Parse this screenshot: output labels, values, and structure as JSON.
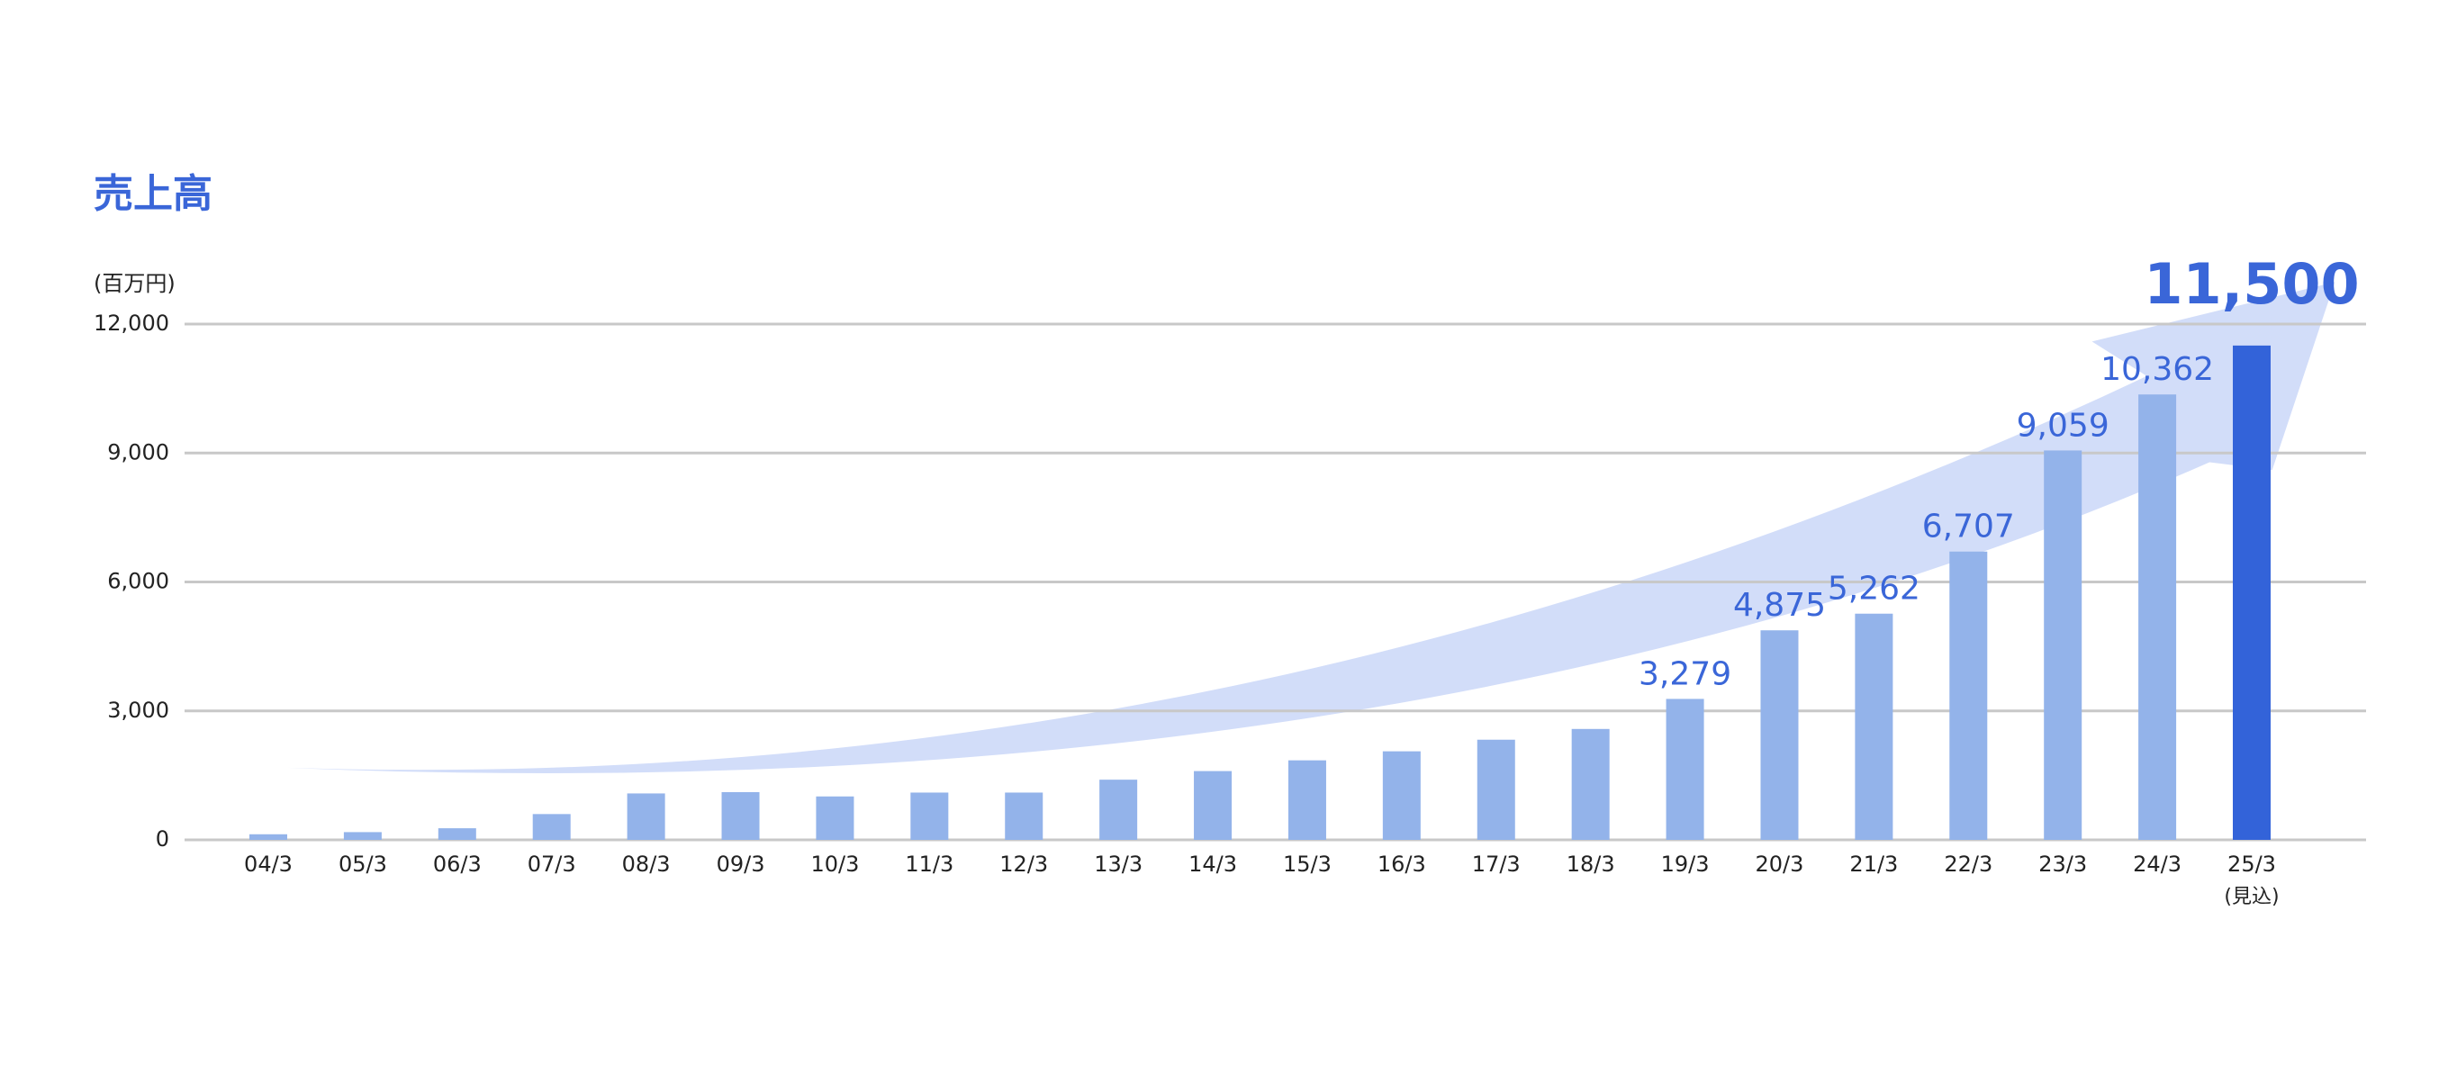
{
  "chart_data": {
    "type": "bar",
    "title": "売上高",
    "y_unit": "(百万円)",
    "categories": [
      "04/3",
      "05/3",
      "06/3",
      "07/3",
      "08/3",
      "09/3",
      "10/3",
      "11/3",
      "12/3",
      "13/3",
      "14/3",
      "15/3",
      "16/3",
      "17/3",
      "18/3",
      "19/3",
      "20/3",
      "21/3",
      "22/3",
      "23/3",
      "24/3",
      "25/3"
    ],
    "category_note": "(見込)",
    "values": [
      130,
      180,
      270,
      600,
      1080,
      1110,
      1010,
      1100,
      1100,
      1400,
      1600,
      1850,
      2060,
      2330,
      2580,
      3279,
      4875,
      5262,
      6707,
      9059,
      10362,
      11500
    ],
    "value_labels": [
      null,
      null,
      null,
      null,
      null,
      null,
      null,
      null,
      null,
      null,
      null,
      null,
      null,
      null,
      null,
      "3,279",
      "4,875",
      "5,262",
      "6,707",
      "9,059",
      "10,362",
      "11,500"
    ],
    "color": "#93b3ea",
    "highlight_color": "#3363d9",
    "ylim": [
      0,
      12000
    ],
    "yticks": [
      0,
      {
        "value": 3000,
        "label": "3,000"
      },
      {
        "value": 6000,
        "label": "6,000"
      },
      {
        "value": 9000,
        "label": "9,000"
      },
      {
        "value": 12000,
        "label": "12,000"
      }
    ],
    "grid": true
  }
}
